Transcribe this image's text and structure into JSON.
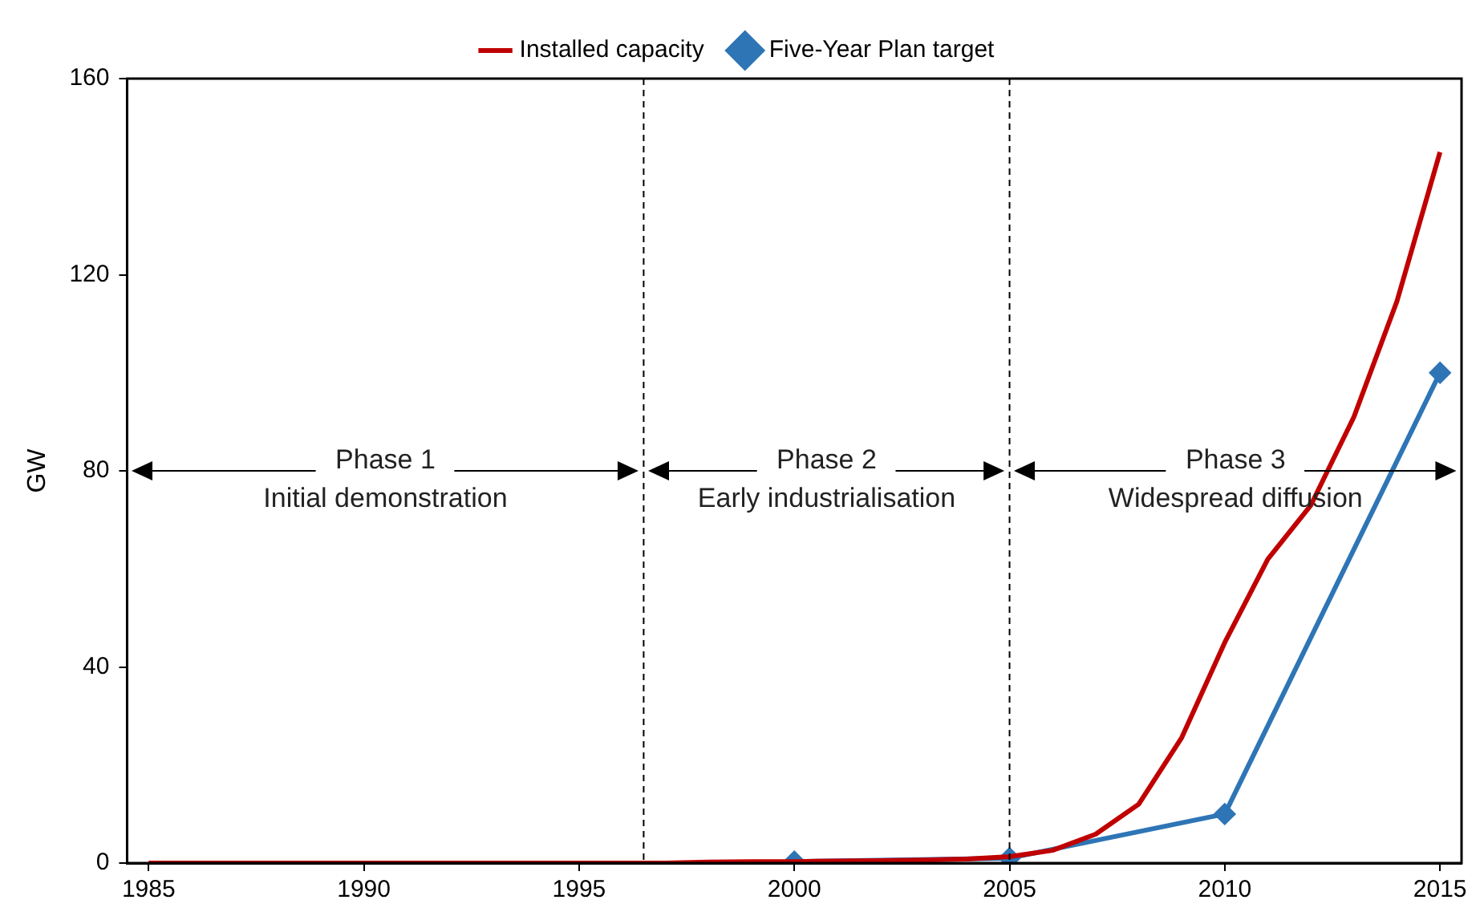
{
  "chart_data": {
    "type": "line",
    "ylabel": "GW",
    "legend": "top",
    "grid": false,
    "line_style": "solid",
    "xlim": [
      1984.5,
      2015.5
    ],
    "xticks": [
      1985,
      1990,
      1995,
      2000,
      2005,
      2010,
      2015
    ],
    "ylim": [
      0,
      160
    ],
    "yticks": [
      0,
      40,
      80,
      120,
      160
    ],
    "series": [
      {
        "name": "Installed capacity",
        "color": "#c00000",
        "marker": "none",
        "x": [
          1985,
          1986,
          1987,
          1988,
          1989,
          1990,
          1991,
          1992,
          1993,
          1994,
          1995,
          1996,
          1997,
          1998,
          1999,
          2000,
          2001,
          2002,
          2003,
          2004,
          2005,
          2006,
          2007,
          2008,
          2009,
          2010,
          2011,
          2012,
          2013,
          2014,
          2015
        ],
        "values": [
          0,
          0,
          0,
          0,
          0,
          0,
          0,
          0,
          0,
          0,
          0,
          0,
          0,
          0.2,
          0.3,
          0.3,
          0.4,
          0.5,
          0.6,
          0.8,
          1.3,
          2.6,
          5.9,
          12,
          25.6,
          45,
          62,
          73,
          91,
          114.6,
          145
        ]
      },
      {
        "name": "Five-Year Plan target",
        "color": "#2e75b6",
        "marker": "diamond",
        "x": [
          2000,
          2005,
          2010,
          2015
        ],
        "values": [
          0.3,
          1,
          10,
          100
        ]
      }
    ],
    "ref_lines": [
      {
        "axis": "x",
        "value": 1996.5,
        "color": "#000000",
        "line_style": "dashed"
      },
      {
        "axis": "x",
        "value": 2005,
        "color": "#000000",
        "line_style": "dashed"
      }
    ],
    "annotations": [
      "Phase 1\nInitial demonstration",
      "Phase 2\nEarly industrialisation",
      "Phase 3\nWidespread diffusion"
    ]
  }
}
